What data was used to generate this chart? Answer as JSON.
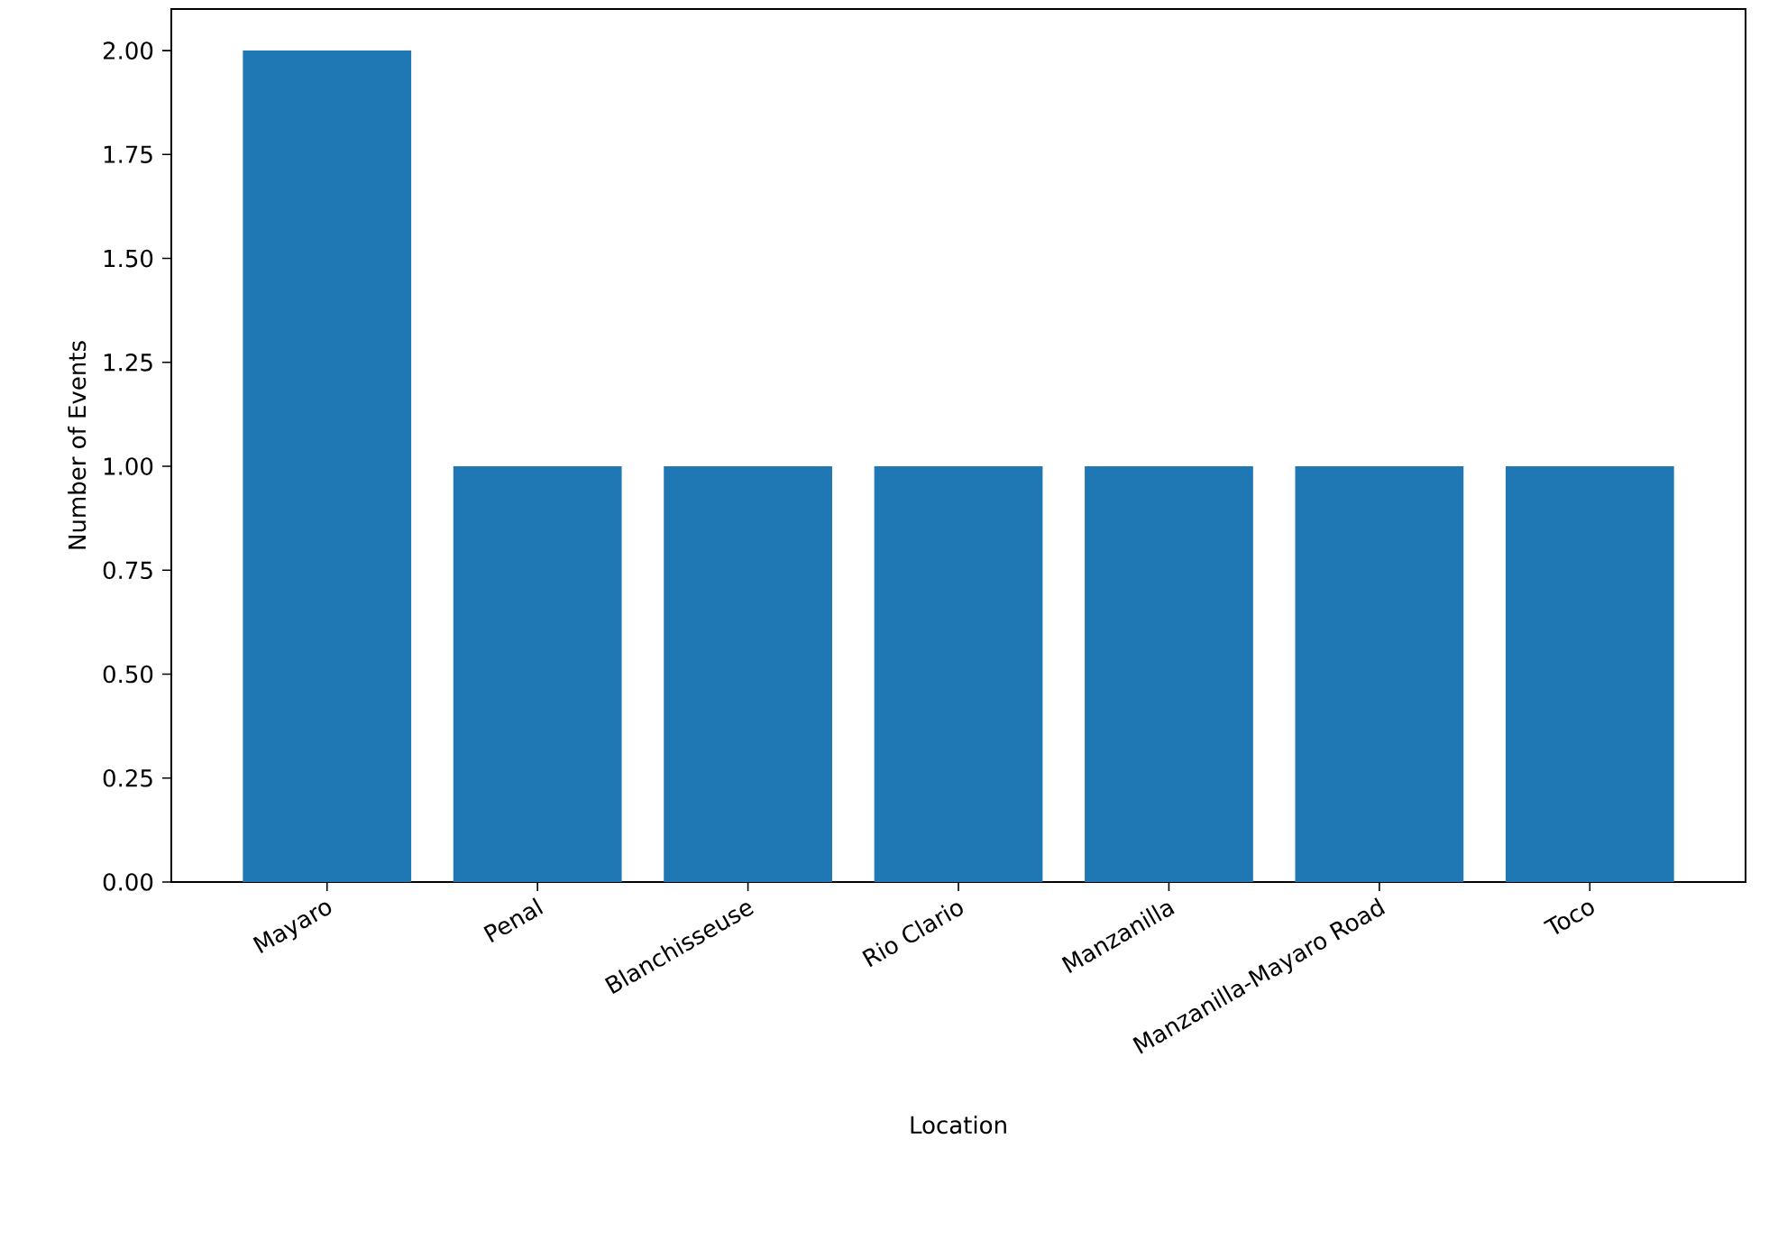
{
  "chart_data": {
    "type": "bar",
    "xlabel": "Location",
    "ylabel": "Number of Events",
    "categories": [
      "Mayaro",
      "Penal",
      "Blanchisseuse",
      "Rio Clario",
      "Manzanilla",
      "Manzanilla-Mayaro Road",
      "Toco"
    ],
    "values": [
      2,
      1,
      1,
      1,
      1,
      1,
      1
    ],
    "color": "#1f77b4",
    "ylim": [
      0,
      2.1
    ],
    "yticks": [
      {
        "value": 0,
        "label": "0.00"
      },
      {
        "value": 0.25,
        "label": "0.25"
      },
      {
        "value": 0.5,
        "label": "0.50"
      },
      {
        "value": 0.75,
        "label": "0.75"
      },
      {
        "value": 1,
        "label": "1.00"
      },
      {
        "value": 1.25,
        "label": "1.25"
      },
      {
        "value": 1.5,
        "label": "1.50"
      },
      {
        "value": 1.75,
        "label": "1.75"
      },
      {
        "value": 2,
        "label": "2.00"
      }
    ],
    "grid": false
  }
}
